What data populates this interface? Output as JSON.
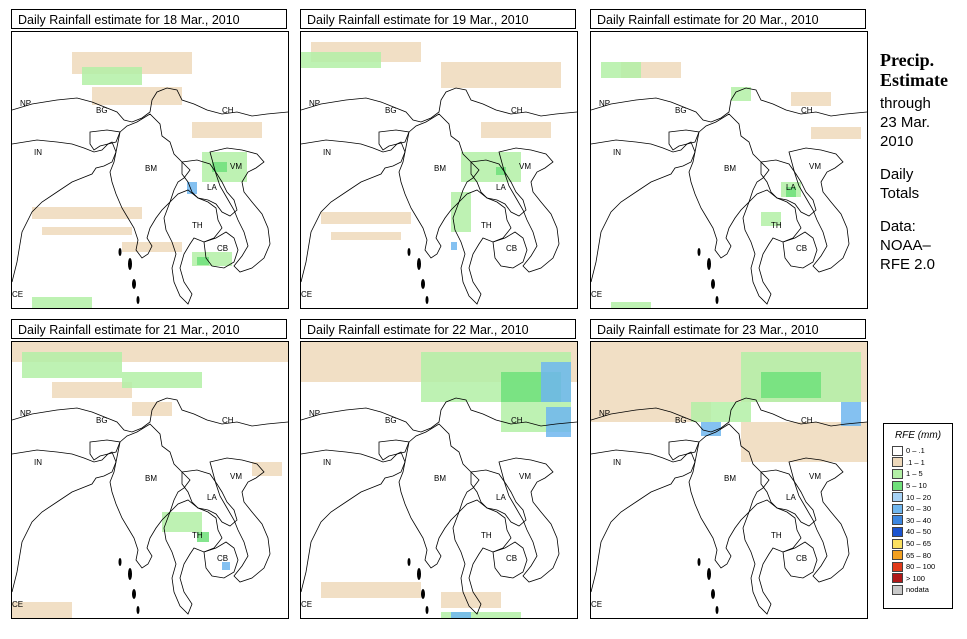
{
  "panels": [
    {
      "title": "Daily Rainfall estimate for  18 Mar., 2010"
    },
    {
      "title": "Daily Rainfall estimate for  19 Mar., 2010"
    },
    {
      "title": "Daily Rainfall estimate for  20 Mar., 2010"
    },
    {
      "title": "Daily Rainfall estimate for  21 Mar., 2010"
    },
    {
      "title": "Daily Rainfall estimate for  22 Mar., 2010"
    },
    {
      "title": "Daily Rainfall estimate for  23 Mar., 2010"
    }
  ],
  "country_labels": {
    "np": "NP",
    "ch": "CH",
    "in": "IN",
    "bg": "BG",
    "bm": "BM",
    "vm": "VM",
    "la": "LA",
    "th": "TH",
    "cb": "CB",
    "ce": "CE"
  },
  "side": {
    "title1": "Precip.",
    "title2": "Estimate",
    "through": "through",
    "date1": "23 Mar.",
    "date2": "2010",
    "daily": "Daily",
    "totals": "Totals",
    "data": "Data:",
    "src1": "NOAA–",
    "src2": "RFE 2.0"
  },
  "legend": {
    "title": "RFE (mm)",
    "items": [
      {
        "label": "0 – .1",
        "color": "#ffffff"
      },
      {
        "label": ".1 – 1",
        "color": "#eed9bb"
      },
      {
        "label": "1 – 5",
        "color": "#b3f0a6"
      },
      {
        "label": "5 – 10",
        "color": "#6fe07a"
      },
      {
        "label": "10 – 20",
        "color": "#a6d2f5"
      },
      {
        "label": "20 – 30",
        "color": "#6fb6ee"
      },
      {
        "label": "30 – 40",
        "color": "#3b86e0"
      },
      {
        "label": "40 – 50",
        "color": "#1a54d0"
      },
      {
        "label": "50 – 65",
        "color": "#fae060"
      },
      {
        "label": "65 – 80",
        "color": "#f2a020"
      },
      {
        "label": "80 – 100",
        "color": "#e03a1a"
      },
      {
        "label": "> 100",
        "color": "#b01818"
      },
      {
        "label": "nodata",
        "color": "#c8c8c8"
      }
    ]
  },
  "map_layers": [
    {
      "tan": [
        [
          60,
          20,
          120,
          22
        ],
        [
          80,
          55,
          90,
          18
        ],
        [
          20,
          175,
          110,
          12
        ],
        [
          30,
          195,
          90,
          8
        ],
        [
          110,
          210,
          60,
          10
        ],
        [
          180,
          90,
          70,
          16
        ]
      ],
      "light_green": [
        [
          70,
          35,
          60,
          18
        ],
        [
          190,
          120,
          45,
          30
        ],
        [
          180,
          220,
          40,
          14
        ],
        [
          20,
          265,
          60,
          12
        ]
      ],
      "green": [
        [
          200,
          130,
          15,
          10
        ],
        [
          185,
          225,
          12,
          8
        ]
      ],
      "blue": [
        [
          175,
          150,
          10,
          12
        ],
        [
          100,
          280,
          8,
          6
        ]
      ]
    },
    {
      "tan": [
        [
          10,
          10,
          110,
          20
        ],
        [
          140,
          30,
          120,
          26
        ],
        [
          20,
          180,
          90,
          12
        ],
        [
          30,
          200,
          70,
          8
        ],
        [
          180,
          90,
          70,
          16
        ]
      ],
      "light_green": [
        [
          0,
          20,
          80,
          16
        ],
        [
          160,
          120,
          60,
          30
        ],
        [
          150,
          160,
          20,
          40
        ]
      ],
      "green": [
        [
          195,
          135,
          10,
          8
        ]
      ],
      "blue": [
        [
          150,
          210,
          6,
          8
        ]
      ]
    },
    {
      "tan": [
        [
          30,
          30,
          60,
          16
        ],
        [
          200,
          60,
          40,
          14
        ],
        [
          220,
          95,
          50,
          12
        ]
      ],
      "light_green": [
        [
          10,
          30,
          40,
          16
        ],
        [
          140,
          55,
          20,
          14
        ],
        [
          190,
          150,
          20,
          15
        ],
        [
          170,
          180,
          20,
          14
        ],
        [
          20,
          270,
          40,
          10
        ]
      ],
      "green": [
        [
          195,
          155,
          10,
          10
        ]
      ],
      "blue": []
    },
    {
      "tan": [
        [
          0,
          0,
          276,
          20
        ],
        [
          40,
          40,
          80,
          16
        ],
        [
          120,
          60,
          40,
          14
        ],
        [
          240,
          120,
          30,
          14
        ],
        [
          0,
          260,
          60,
          16
        ]
      ],
      "light_green": [
        [
          10,
          10,
          100,
          26
        ],
        [
          110,
          30,
          80,
          16
        ],
        [
          150,
          170,
          40,
          20
        ]
      ],
      "green": [
        [
          185,
          190,
          12,
          10
        ]
      ],
      "blue": [
        [
          210,
          220,
          8,
          8
        ]
      ]
    },
    {
      "tan": [
        [
          0,
          0,
          276,
          40
        ],
        [
          20,
          240,
          100,
          16
        ],
        [
          140,
          250,
          60,
          16
        ]
      ],
      "light_green": [
        [
          120,
          10,
          150,
          50
        ],
        [
          200,
          60,
          70,
          30
        ],
        [
          140,
          270,
          80,
          10
        ]
      ],
      "green": [
        [
          200,
          30,
          60,
          30
        ]
      ],
      "blue": [
        [
          240,
          20,
          30,
          40
        ],
        [
          245,
          65,
          25,
          30
        ],
        [
          150,
          270,
          20,
          8
        ]
      ]
    },
    {
      "tan": [
        [
          0,
          0,
          276,
          60
        ],
        [
          0,
          60,
          120,
          20
        ],
        [
          150,
          80,
          126,
          40
        ]
      ],
      "light_green": [
        [
          150,
          10,
          120,
          50
        ],
        [
          100,
          60,
          60,
          20
        ]
      ],
      "green": [
        [
          170,
          30,
          60,
          26
        ]
      ],
      "blue": [
        [
          110,
          80,
          20,
          14
        ],
        [
          250,
          60,
          20,
          24
        ]
      ]
    }
  ]
}
